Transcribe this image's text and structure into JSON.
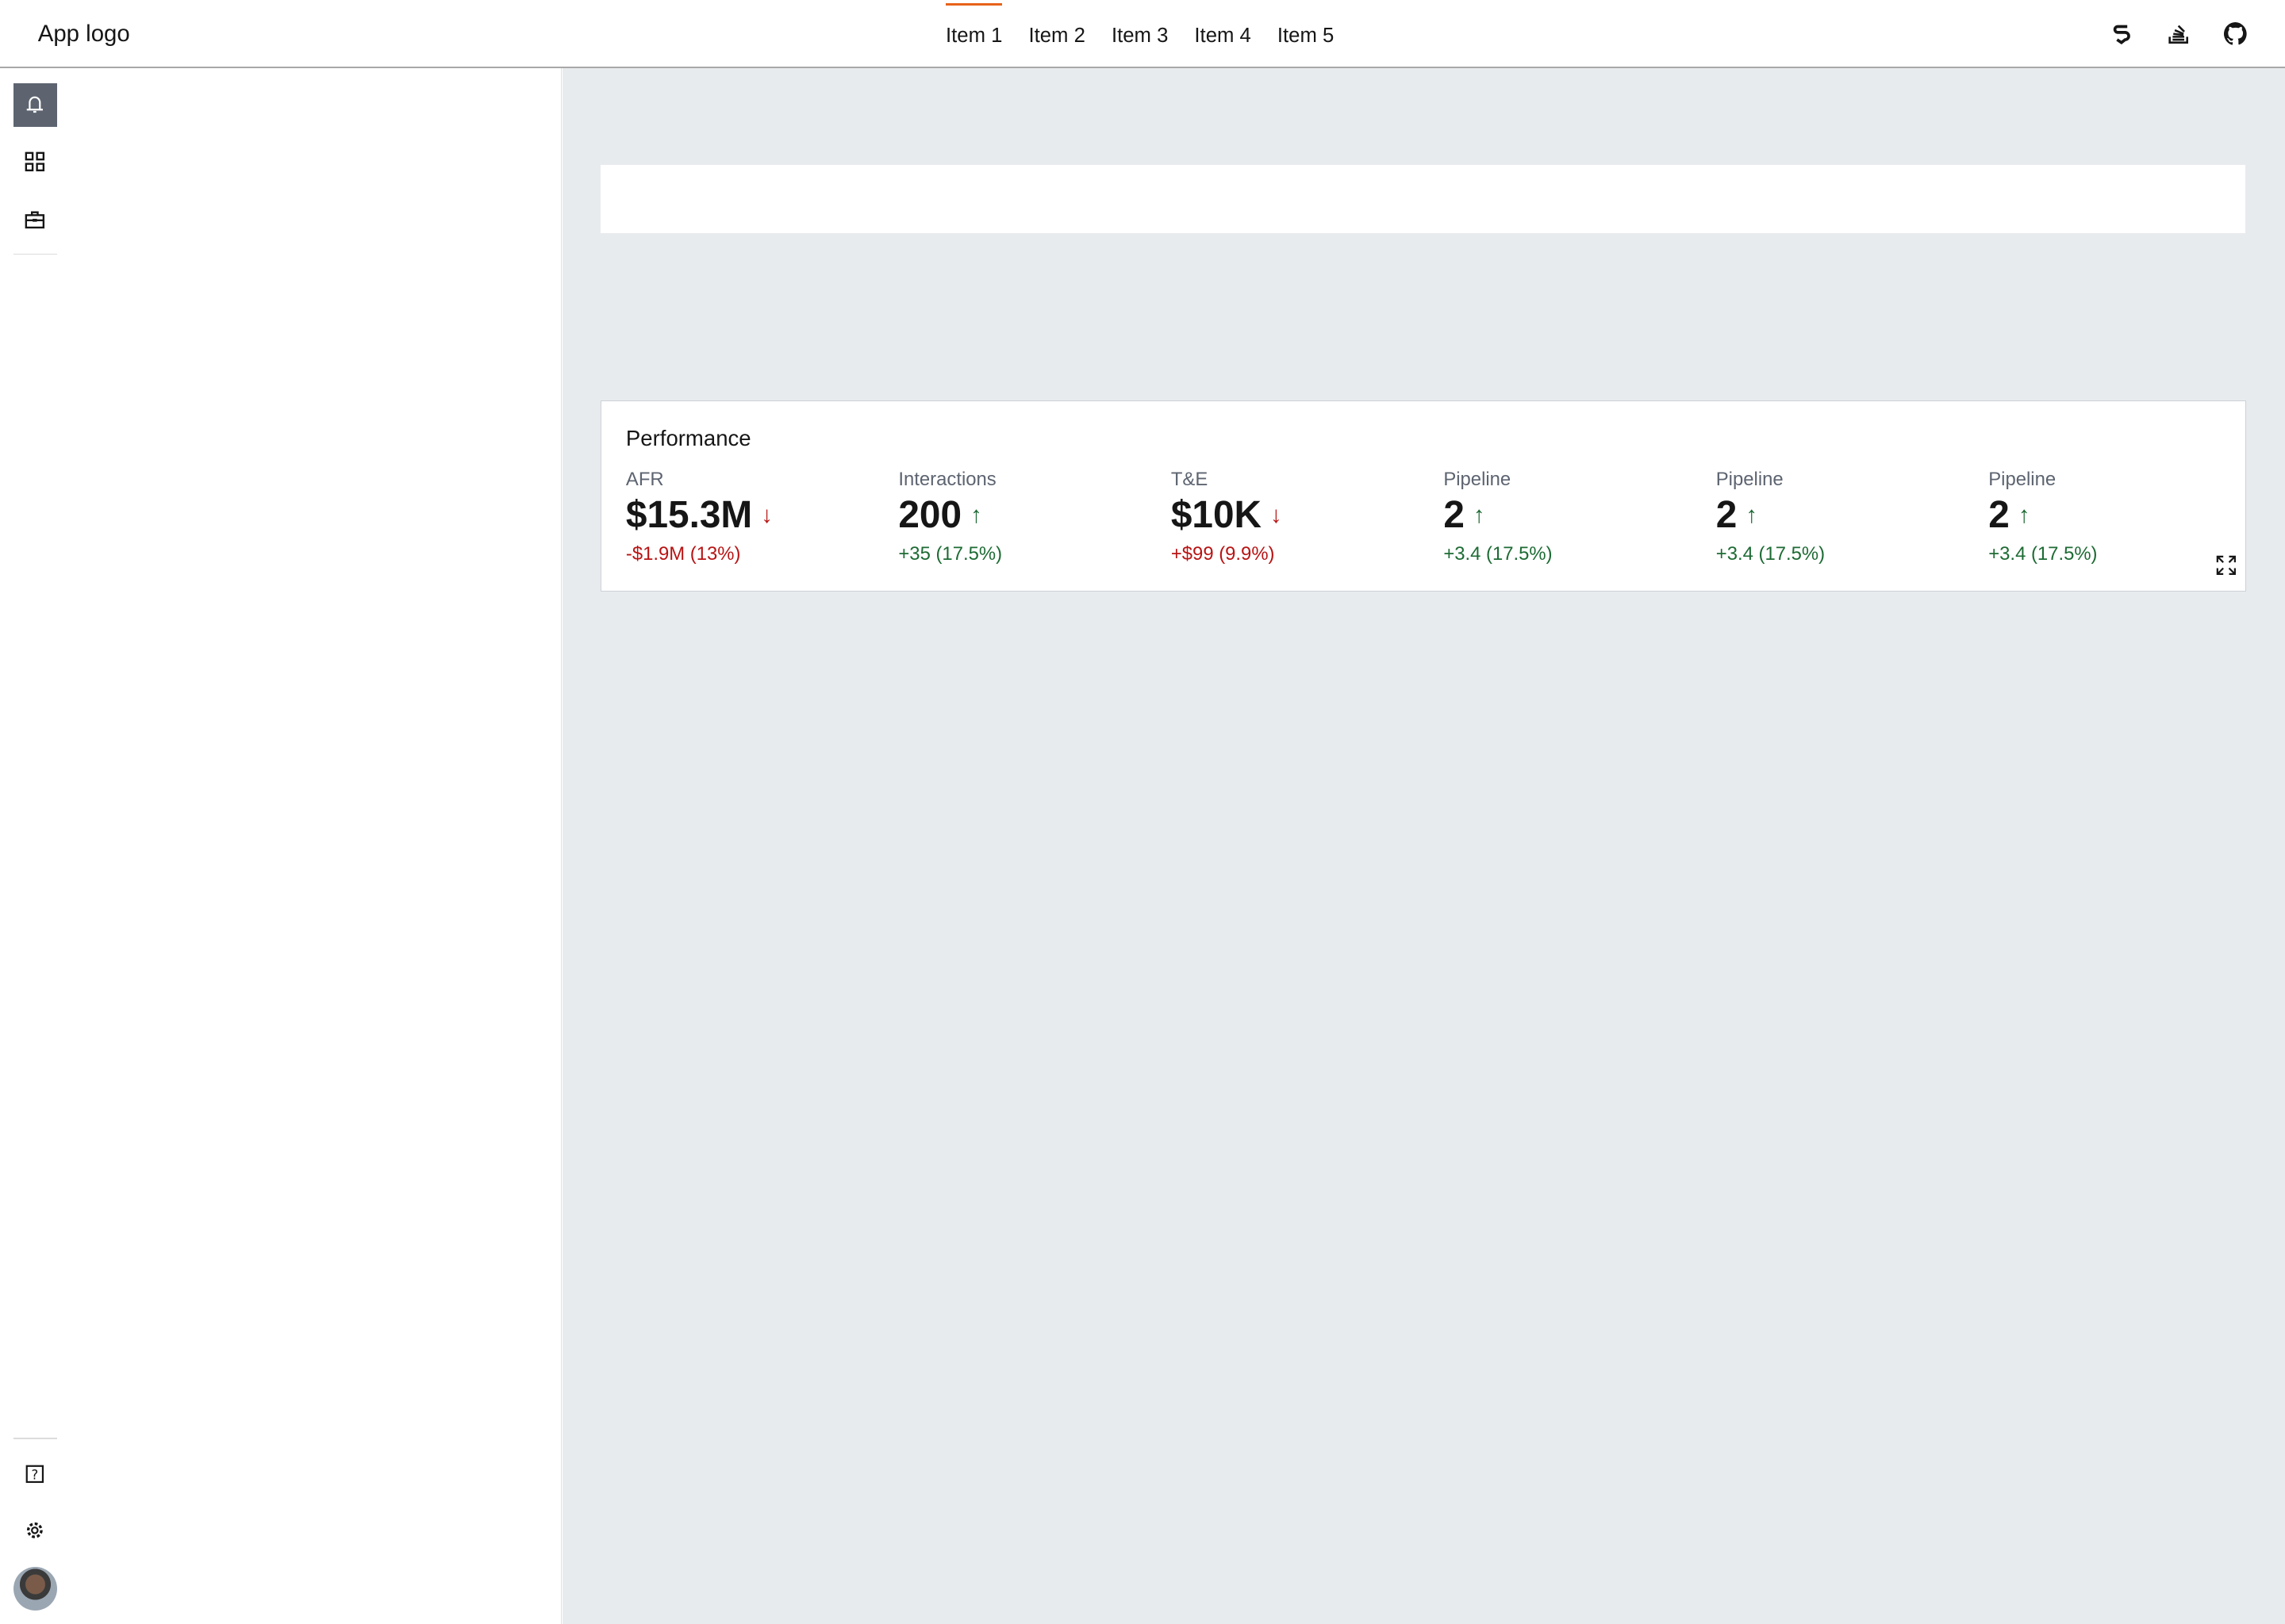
{
  "header": {
    "logo": "App logo",
    "nav": [
      {
        "label": "Item 1",
        "active": true
      },
      {
        "label": "Item 2"
      },
      {
        "label": "Item 3"
      },
      {
        "label": "Item 4"
      },
      {
        "label": "Item 5"
      }
    ],
    "icons": [
      "s-shield-icon",
      "stackoverflow-icon",
      "github-icon"
    ]
  },
  "sidebar": {
    "top_icons": [
      "bell-icon",
      "grid-icon",
      "briefcase-icon"
    ],
    "bottom_icons": [
      "help-icon",
      "settings-icon",
      "avatar"
    ]
  },
  "performance": {
    "title": "Performance",
    "kpis": [
      {
        "label": "AFR",
        "value": "$15.3M",
        "trend": "down",
        "delta": "-$1.9M (13%)"
      },
      {
        "label": "Interactions",
        "value": "200",
        "trend": "up",
        "delta": "+35 (17.5%)"
      },
      {
        "label": "T&E",
        "value": "$10K",
        "trend": "down",
        "delta": "+$99 (9.9%)"
      },
      {
        "label": "Pipeline",
        "value": "2",
        "trend": "up",
        "delta": "+3.4 (17.5%)"
      },
      {
        "label": "Pipeline",
        "value": "2",
        "trend": "up",
        "delta": "+3.4 (17.5%)"
      },
      {
        "label": "Pipeline",
        "value": "2",
        "trend": "up",
        "delta": "+3.4 (17.5%)"
      }
    ]
  },
  "colors": {
    "accent": "#e8621a",
    "down": "#b81414",
    "up": "#1d6b34",
    "background": "#e8ebee"
  }
}
